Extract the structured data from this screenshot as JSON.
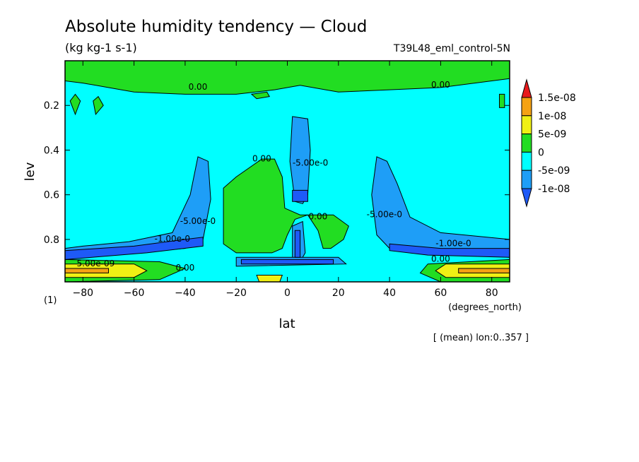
{
  "chart_data": {
    "type": "heatmap",
    "title": "Absolute humidity tendency — Cloud",
    "units": "(kg kg-1 s-1)",
    "experiment": "T39L48_eml_control-5N",
    "xlabel": "lat",
    "x_unit": "(degrees_north)",
    "ylabel": "lev",
    "y_unit": "(1)",
    "xlim": [
      -87,
      87
    ],
    "ylim": [
      0.0,
      0.99
    ],
    "y_inverted": true,
    "x_ticks": [
      -80,
      -60,
      -40,
      -20,
      0,
      20,
      40,
      60,
      80
    ],
    "x_tick_labels": [
      "−80",
      "−60",
      "−40",
      "−20",
      "0",
      "20",
      "40",
      "60",
      "80"
    ],
    "y_ticks": [
      0.2,
      0.4,
      0.6,
      0.8
    ],
    "y_tick_labels": [
      "0.2",
      "0.4",
      "0.6",
      "0.8"
    ],
    "footer": "[ (mean) lon:0..357 ]",
    "colorbar": {
      "levels": [
        {
          "label": "",
          "color": "#e8191c"
        },
        {
          "label": "1.5e-08",
          "color": "#f5a213"
        },
        {
          "label": "1e-08",
          "color": "#f0f014"
        },
        {
          "label": "5e-09",
          "color": "#22dd22"
        },
        {
          "label": "0",
          "color": "#00ffff"
        },
        {
          "label": "-5e-09",
          "color": "#1e9ef7"
        },
        {
          "label": "-1e-08",
          "color": "#1e5af7"
        }
      ],
      "tick_labels": [
        "1.5e-08",
        "1e-08",
        "5e-09",
        "0",
        "-5e-09",
        "-1e-08"
      ]
    },
    "regions": [
      {
        "name": "top-green-band",
        "fill": "#22dd22",
        "points": [
          [
            -87,
            0.0
          ],
          [
            87,
            0.0
          ],
          [
            87,
            0.08
          ],
          [
            60,
            0.12
          ],
          [
            40,
            0.13
          ],
          [
            20,
            0.14
          ],
          [
            5,
            0.11
          ],
          [
            -5,
            0.13
          ],
          [
            -20,
            0.15
          ],
          [
            -40,
            0.15
          ],
          [
            -60,
            0.14
          ],
          [
            -80,
            0.1
          ],
          [
            -87,
            0.09
          ]
        ]
      },
      {
        "name": "blob-center-large",
        "fill": "#22dd22",
        "points": [
          [
            -25,
            0.57
          ],
          [
            -20,
            0.52
          ],
          [
            -10,
            0.44
          ],
          [
            -5,
            0.44
          ],
          [
            -2,
            0.52
          ],
          [
            -1,
            0.66
          ],
          [
            5,
            0.69
          ],
          [
            18,
            0.69
          ],
          [
            24,
            0.74
          ],
          [
            22,
            0.8
          ],
          [
            17,
            0.84
          ],
          [
            14,
            0.84
          ],
          [
            12,
            0.76
          ],
          [
            8,
            0.69
          ],
          [
            3,
            0.71
          ],
          [
            0,
            0.78
          ],
          [
            -2,
            0.84
          ],
          [
            -6,
            0.86
          ],
          [
            -20,
            0.86
          ],
          [
            -25,
            0.82
          ]
        ]
      },
      {
        "name": "blob-upper-left-1",
        "fill": "#22dd22",
        "points": [
          [
            -85,
            0.18
          ],
          [
            -83,
            0.15
          ],
          [
            -81,
            0.18
          ],
          [
            -83,
            0.24
          ]
        ]
      },
      {
        "name": "blob-upper-left-2",
        "fill": "#22dd22",
        "points": [
          [
            -76,
            0.18
          ],
          [
            -74,
            0.16
          ],
          [
            -72,
            0.2
          ],
          [
            -75,
            0.24
          ]
        ]
      },
      {
        "name": "blob-upper-center",
        "fill": "#22dd22",
        "points": [
          [
            -14,
            0.15
          ],
          [
            -8,
            0.14
          ],
          [
            -7,
            0.16
          ],
          [
            -12,
            0.17
          ]
        ]
      },
      {
        "name": "blob-upper-right",
        "fill": "#22dd22",
        "points": [
          [
            83,
            0.15
          ],
          [
            85,
            0.15
          ],
          [
            85,
            0.21
          ],
          [
            83,
            0.21
          ]
        ]
      },
      {
        "name": "tongue-left",
        "fill": "#1e9ef7",
        "points": [
          [
            -35,
            0.43
          ],
          [
            -31,
            0.45
          ],
          [
            -30,
            0.62
          ],
          [
            -33,
            0.8
          ],
          [
            -40,
            0.84
          ],
          [
            -60,
            0.86
          ],
          [
            -80,
            0.87
          ],
          [
            -87,
            0.88
          ],
          [
            -87,
            0.84
          ],
          [
            -80,
            0.83
          ],
          [
            -62,
            0.81
          ],
          [
            -45,
            0.77
          ],
          [
            -38,
            0.6
          ]
        ]
      },
      {
        "name": "tongue-right",
        "fill": "#1e9ef7",
        "points": [
          [
            35,
            0.43
          ],
          [
            39,
            0.45
          ],
          [
            43,
            0.55
          ],
          [
            48,
            0.7
          ],
          [
            60,
            0.77
          ],
          [
            87,
            0.8
          ],
          [
            87,
            0.88
          ],
          [
            60,
            0.86
          ],
          [
            40,
            0.84
          ],
          [
            35,
            0.78
          ],
          [
            33,
            0.6
          ]
        ]
      },
      {
        "name": "column-center",
        "fill": "#1e9ef7",
        "points": [
          [
            2,
            0.25
          ],
          [
            8,
            0.26
          ],
          [
            9,
            0.4
          ],
          [
            8,
            0.6
          ],
          [
            6,
            0.64
          ],
          [
            3,
            0.63
          ],
          [
            1,
            0.45
          ]
        ]
      },
      {
        "name": "column-center-lower",
        "fill": "#1e9ef7",
        "points": [
          [
            2,
            0.74
          ],
          [
            6,
            0.72
          ],
          [
            7,
            0.86
          ],
          [
            5,
            0.9
          ],
          [
            2,
            0.88
          ]
        ]
      },
      {
        "name": "band-lower-center",
        "fill": "#1e9ef7",
        "points": [
          [
            -20,
            0.88
          ],
          [
            20,
            0.88
          ],
          [
            23,
            0.91
          ],
          [
            -20,
            0.92
          ]
        ]
      },
      {
        "name": "blue-lower-left",
        "fill": "#1e5af7",
        "points": [
          [
            -87,
            0.85
          ],
          [
            -60,
            0.83
          ],
          [
            -40,
            0.8
          ],
          [
            -33,
            0.79
          ],
          [
            -33,
            0.83
          ],
          [
            -55,
            0.86
          ],
          [
            -87,
            0.89
          ]
        ]
      },
      {
        "name": "blue-lower-right",
        "fill": "#1e5af7",
        "points": [
          [
            40,
            0.82
          ],
          [
            60,
            0.84
          ],
          [
            87,
            0.84
          ],
          [
            87,
            0.88
          ],
          [
            55,
            0.87
          ],
          [
            40,
            0.85
          ]
        ]
      },
      {
        "name": "blue-column-core",
        "fill": "#1e5af7",
        "points": [
          [
            3,
            0.76
          ],
          [
            5,
            0.76
          ],
          [
            5,
            0.88
          ],
          [
            3,
            0.88
          ]
        ]
      },
      {
        "name": "blue-lower-center",
        "fill": "#1e5af7",
        "points": [
          [
            -18,
            0.89
          ],
          [
            18,
            0.89
          ],
          [
            18,
            0.91
          ],
          [
            -18,
            0.91
          ]
        ]
      },
      {
        "name": "blob-upper-column",
        "fill": "#1e5af7",
        "points": [
          [
            2,
            0.58
          ],
          [
            8,
            0.58
          ],
          [
            8,
            0.63
          ],
          [
            2,
            0.63
          ]
        ]
      },
      {
        "name": "green-bottom-left",
        "fill": "#22dd22",
        "points": [
          [
            -87,
            0.89
          ],
          [
            -50,
            0.9
          ],
          [
            -40,
            0.93
          ],
          [
            -50,
            0.98
          ],
          [
            -87,
            0.99
          ]
        ]
      },
      {
        "name": "green-bottom-right",
        "fill": "#22dd22",
        "points": [
          [
            87,
            0.89
          ],
          [
            55,
            0.91
          ],
          [
            52,
            0.95
          ],
          [
            60,
            0.99
          ],
          [
            87,
            0.99
          ]
        ]
      },
      {
        "name": "yellow-bottom-left",
        "fill": "#f0f014",
        "points": [
          [
            -87,
            0.91
          ],
          [
            -60,
            0.91
          ],
          [
            -55,
            0.94
          ],
          [
            -60,
            0.97
          ],
          [
            -87,
            0.97
          ]
        ]
      },
      {
        "name": "yellow-bottom-right",
        "fill": "#f0f014",
        "points": [
          [
            87,
            0.91
          ],
          [
            62,
            0.91
          ],
          [
            58,
            0.94
          ],
          [
            62,
            0.97
          ],
          [
            87,
            0.97
          ]
        ]
      },
      {
        "name": "orange-bottom-left",
        "fill": "#f5a213",
        "points": [
          [
            -87,
            0.93
          ],
          [
            -70,
            0.93
          ],
          [
            -70,
            0.95
          ],
          [
            -87,
            0.95
          ]
        ]
      },
      {
        "name": "orange-bottom-right",
        "fill": "#f5a213",
        "points": [
          [
            87,
            0.93
          ],
          [
            67,
            0.93
          ],
          [
            67,
            0.95
          ],
          [
            87,
            0.95
          ]
        ]
      },
      {
        "name": "yellow-bottom-center",
        "fill": "#f0f014",
        "points": [
          [
            -12,
            0.96
          ],
          [
            -2,
            0.96
          ],
          [
            -3,
            0.99
          ],
          [
            -11,
            0.99
          ]
        ]
      }
    ],
    "contour_labels": [
      {
        "text": "0.00",
        "x": -35,
        "y": 0.13
      },
      {
        "text": "0.00",
        "x": 60,
        "y": 0.12
      },
      {
        "text": "0.00",
        "x": -10,
        "y": 0.45
      },
      {
        "text": "-5.00e-0",
        "x": 9,
        "y": 0.47
      },
      {
        "text": "-5.00e-0",
        "x": -35,
        "y": 0.73
      },
      {
        "text": "-1.00e-0",
        "x": -45,
        "y": 0.81
      },
      {
        "text": "0.00",
        "x": 12,
        "y": 0.71
      },
      {
        "text": "-5.00e-0",
        "x": 38,
        "y": 0.7
      },
      {
        "text": "-1.00e-0",
        "x": 65,
        "y": 0.83
      },
      {
        "text": "5.00e-09",
        "x": -75,
        "y": 0.92
      },
      {
        "text": "0.00",
        "x": -40,
        "y": 0.94
      },
      {
        "text": "0.00",
        "x": 60,
        "y": 0.9
      }
    ]
  }
}
